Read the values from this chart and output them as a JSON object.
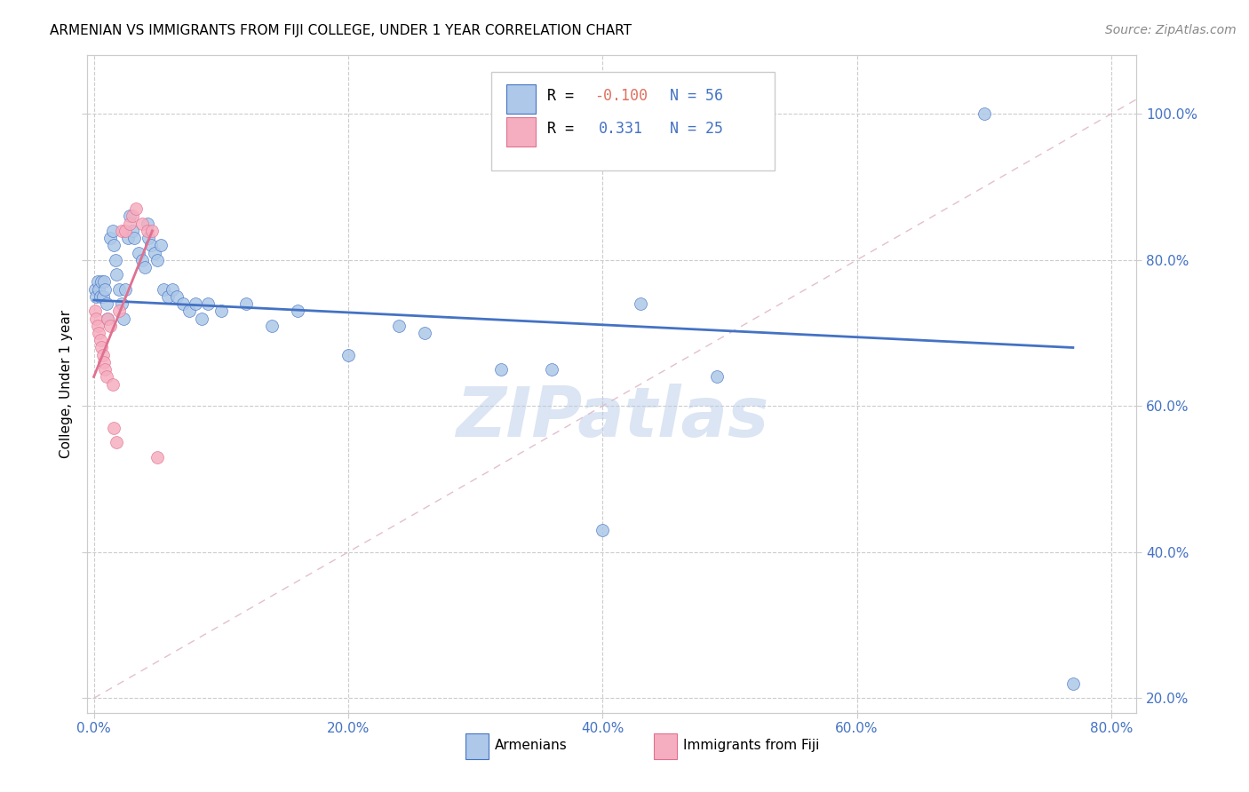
{
  "title": "ARMENIAN VS IMMIGRANTS FROM FIJI COLLEGE, UNDER 1 YEAR CORRELATION CHART",
  "source": "Source: ZipAtlas.com",
  "ylabel": "College, Under 1 year",
  "xlim": [
    -0.005,
    0.82
  ],
  "ylim": [
    0.18,
    1.08
  ],
  "xtick_positions": [
    0.0,
    0.2,
    0.4,
    0.6,
    0.8
  ],
  "ytick_positions": [
    0.2,
    0.4,
    0.6,
    0.8,
    1.0
  ],
  "xtick_labels": [
    "0.0%",
    "20.0%",
    "40.0%",
    "60.0%",
    "80.0%"
  ],
  "ytick_labels": [
    "20.0%",
    "40.0%",
    "60.0%",
    "80.0%",
    "100.0%"
  ],
  "armenians_R": "-0.100",
  "armenians_N": "56",
  "fiji_R": "0.331",
  "fiji_N": "25",
  "armenians_color": "#adc8e8",
  "fiji_color": "#f5aec0",
  "trendline_armenians_color": "#4472c4",
  "trendline_fiji_color": "#e07090",
  "trendline_diagonal_color": "#e0b8c8",
  "watermark": "ZIPatlas",
  "armenians_x": [
    0.001,
    0.002,
    0.003,
    0.004,
    0.005,
    0.006,
    0.007,
    0.008,
    0.009,
    0.01,
    0.011,
    0.013,
    0.015,
    0.016,
    0.017,
    0.018,
    0.02,
    0.022,
    0.023,
    0.025,
    0.027,
    0.028,
    0.03,
    0.032,
    0.035,
    0.038,
    0.04,
    0.042,
    0.043,
    0.045,
    0.048,
    0.05,
    0.053,
    0.055,
    0.058,
    0.062,
    0.065,
    0.07,
    0.075,
    0.08,
    0.085,
    0.09,
    0.1,
    0.12,
    0.14,
    0.16,
    0.2,
    0.24,
    0.26,
    0.32,
    0.36,
    0.4,
    0.43,
    0.49,
    0.7,
    0.77
  ],
  "armenians_y": [
    0.76,
    0.75,
    0.77,
    0.76,
    0.75,
    0.77,
    0.75,
    0.77,
    0.76,
    0.74,
    0.72,
    0.83,
    0.84,
    0.82,
    0.8,
    0.78,
    0.76,
    0.74,
    0.72,
    0.76,
    0.83,
    0.86,
    0.84,
    0.83,
    0.81,
    0.8,
    0.79,
    0.85,
    0.83,
    0.82,
    0.81,
    0.8,
    0.82,
    0.76,
    0.75,
    0.76,
    0.75,
    0.74,
    0.73,
    0.74,
    0.72,
    0.74,
    0.73,
    0.74,
    0.71,
    0.73,
    0.67,
    0.71,
    0.7,
    0.65,
    0.65,
    0.43,
    0.74,
    0.64,
    1.0,
    0.22
  ],
  "fiji_x": [
    0.001,
    0.002,
    0.003,
    0.004,
    0.005,
    0.006,
    0.007,
    0.008,
    0.009,
    0.01,
    0.011,
    0.013,
    0.015,
    0.016,
    0.018,
    0.02,
    0.022,
    0.025,
    0.028,
    0.03,
    0.033,
    0.038,
    0.042,
    0.046,
    0.05
  ],
  "fiji_y": [
    0.73,
    0.72,
    0.71,
    0.7,
    0.69,
    0.68,
    0.67,
    0.66,
    0.65,
    0.64,
    0.72,
    0.71,
    0.63,
    0.57,
    0.55,
    0.73,
    0.84,
    0.84,
    0.85,
    0.86,
    0.87,
    0.85,
    0.84,
    0.84,
    0.53
  ]
}
